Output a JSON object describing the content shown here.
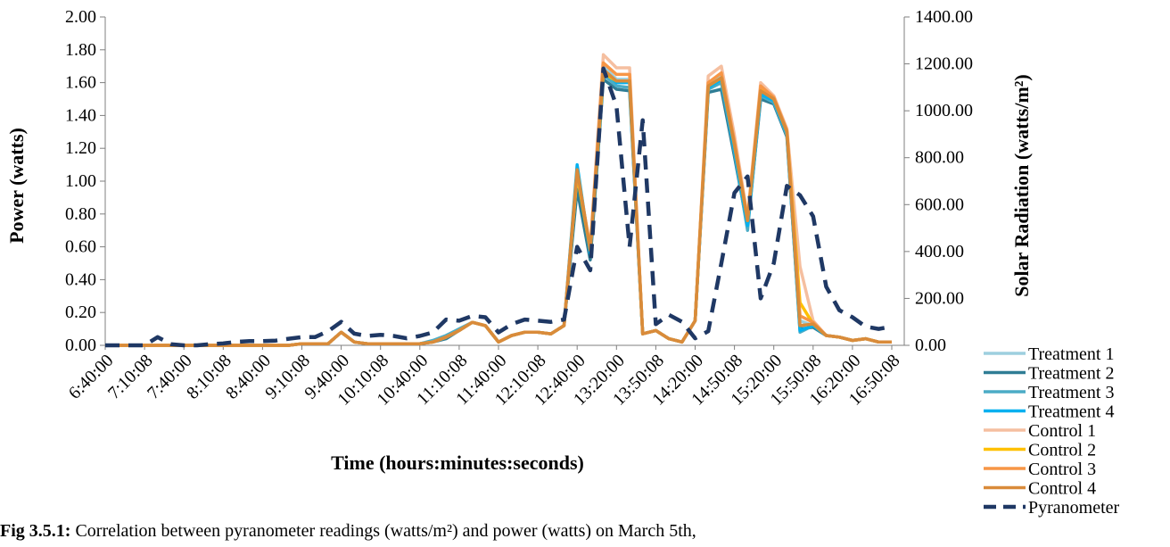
{
  "caption": {
    "label": "Fig 3.5.1:",
    "text": "Correlation between pyranometer readings (watts/m²) and power (watts) on March 5th,"
  },
  "chart_data": {
    "type": "line",
    "xlabel": "Time (hours:minutes:seconds)",
    "ylabel": "Power (watts)",
    "y2label": "Solar Radiation (watts/m²)",
    "ylim": [
      0,
      2
    ],
    "y2lim": [
      0,
      1400
    ],
    "yticks": [
      "0.00",
      "0.20",
      "0.40",
      "0.60",
      "0.80",
      "1.00",
      "1.20",
      "1.40",
      "1.60",
      "1.80",
      "2.00"
    ],
    "y2ticks": [
      "0.00",
      "200.00",
      "400.00",
      "600.00",
      "800.00",
      "1000.00",
      "1200.00",
      "1400.00"
    ],
    "xtick_labels": [
      "6:40:00",
      "7:10:08",
      "7:40:00",
      "8:10:08",
      "8:40:00",
      "9:10:08",
      "9:40:00",
      "10:10:08",
      "10:40:00",
      "11:10:08",
      "11:40:00",
      "12:10:08",
      "12:40:00",
      "13:20:00",
      "13:50:08",
      "14:20:00",
      "14:50:08",
      "15:20:00",
      "15:50:08",
      "16:20:00",
      "16:50:08"
    ],
    "n_points": 61,
    "legend_position": "right",
    "series": [
      {
        "name": "Treatment 1",
        "color": "#9dcfdf",
        "axis": "left",
        "dash": false,
        "values": [
          0,
          0,
          0,
          0,
          0,
          0,
          0,
          0,
          0,
          0,
          0,
          0,
          0,
          0,
          0,
          0.01,
          0.01,
          0.01,
          0.08,
          0.02,
          0.01,
          0.01,
          0.01,
          0.01,
          0.01,
          0.02,
          0.05,
          0.09,
          0.14,
          0.12,
          0.02,
          0.06,
          0.08,
          0.08,
          0.07,
          0.12,
          0.98,
          0.55,
          1.7,
          1.62,
          1.62,
          0.07,
          0.09,
          0.04,
          0.02,
          0.15,
          1.58,
          1.64,
          1.2,
          0.75,
          1.55,
          1.5,
          1.3,
          0.15,
          0.12,
          0.06,
          0.05,
          0.03,
          0.04,
          0.02,
          0.02
        ]
      },
      {
        "name": "Treatment 2",
        "color": "#2f7d95",
        "axis": "left",
        "dash": false,
        "values": [
          0,
          0,
          0,
          0,
          0,
          0,
          0,
          0,
          0,
          0,
          0,
          0,
          0,
          0,
          0,
          0.01,
          0.01,
          0.01,
          0.08,
          0.02,
          0.01,
          0.01,
          0.01,
          0.01,
          0.01,
          0.02,
          0.04,
          0.09,
          0.14,
          0.12,
          0.02,
          0.06,
          0.08,
          0.08,
          0.07,
          0.12,
          0.95,
          0.52,
          1.62,
          1.56,
          1.55,
          0.07,
          0.09,
          0.04,
          0.02,
          0.15,
          1.54,
          1.56,
          1.15,
          0.72,
          1.5,
          1.47,
          1.27,
          0.1,
          0.11,
          0.06,
          0.05,
          0.03,
          0.04,
          0.02,
          0.02
        ]
      },
      {
        "name": "Treatment 3",
        "color": "#4bacc6",
        "axis": "left",
        "dash": false,
        "values": [
          0,
          0,
          0,
          0,
          0,
          0,
          0,
          0,
          0,
          0,
          0,
          0,
          0,
          0,
          0,
          0.01,
          0.01,
          0.01,
          0.08,
          0.02,
          0.01,
          0.01,
          0.01,
          0.01,
          0.01,
          0.03,
          0.06,
          0.1,
          0.14,
          0.12,
          0.02,
          0.06,
          0.08,
          0.08,
          0.07,
          0.12,
          1.05,
          0.58,
          1.65,
          1.58,
          1.57,
          0.07,
          0.09,
          0.04,
          0.02,
          0.15,
          1.56,
          1.6,
          1.18,
          0.7,
          1.52,
          1.48,
          1.28,
          0.08,
          0.12,
          0.06,
          0.05,
          0.03,
          0.04,
          0.02,
          0.02
        ]
      },
      {
        "name": "Treatment 4",
        "color": "#00b0f0",
        "axis": "left",
        "dash": false,
        "values": [
          0,
          0,
          0,
          0,
          0,
          0,
          0,
          0,
          0,
          0,
          0,
          0,
          0,
          0,
          0,
          0.01,
          0.01,
          0.01,
          0.08,
          0.02,
          0.01,
          0.01,
          0.01,
          0.01,
          0.01,
          0.02,
          0.05,
          0.09,
          0.14,
          0.12,
          0.02,
          0.06,
          0.08,
          0.08,
          0.07,
          0.12,
          1.1,
          0.56,
          1.68,
          1.6,
          1.6,
          0.07,
          0.09,
          0.04,
          0.02,
          0.15,
          1.57,
          1.62,
          1.19,
          0.73,
          1.53,
          1.49,
          1.29,
          0.09,
          0.12,
          0.06,
          0.05,
          0.03,
          0.04,
          0.02,
          0.02
        ]
      },
      {
        "name": "Control 1",
        "color": "#f5bfa0",
        "axis": "left",
        "dash": false,
        "values": [
          0,
          0,
          0,
          0,
          0,
          0,
          0,
          0,
          0,
          0,
          0,
          0,
          0,
          0,
          0,
          0.01,
          0.01,
          0.01,
          0.08,
          0.02,
          0.01,
          0.01,
          0.01,
          0.01,
          0.01,
          0.02,
          0.05,
          0.09,
          0.14,
          0.12,
          0.02,
          0.06,
          0.08,
          0.08,
          0.07,
          0.12,
          1.05,
          0.6,
          1.77,
          1.69,
          1.69,
          0.07,
          0.09,
          0.04,
          0.02,
          0.15,
          1.64,
          1.7,
          1.28,
          0.78,
          1.6,
          1.52,
          1.32,
          0.48,
          0.15,
          0.06,
          0.05,
          0.03,
          0.04,
          0.02,
          0.02
        ]
      },
      {
        "name": "Control 2",
        "color": "#ffc000",
        "axis": "left",
        "dash": false,
        "values": [
          0,
          0,
          0,
          0,
          0,
          0,
          0,
          0,
          0,
          0,
          0,
          0,
          0,
          0,
          0,
          0.01,
          0.01,
          0.01,
          0.08,
          0.02,
          0.01,
          0.01,
          0.01,
          0.01,
          0.01,
          0.02,
          0.05,
          0.09,
          0.14,
          0.12,
          0.02,
          0.06,
          0.08,
          0.08,
          0.07,
          0.12,
          1.04,
          0.58,
          1.66,
          1.61,
          1.61,
          0.07,
          0.09,
          0.04,
          0.02,
          0.15,
          1.58,
          1.63,
          1.22,
          0.76,
          1.56,
          1.5,
          1.3,
          0.26,
          0.13,
          0.06,
          0.05,
          0.03,
          0.04,
          0.02,
          0.02
        ]
      },
      {
        "name": "Control 3",
        "color": "#f79646",
        "axis": "left",
        "dash": false,
        "values": [
          0,
          0,
          0,
          0,
          0,
          0,
          0,
          0,
          0,
          0,
          0,
          0,
          0,
          0,
          0,
          0.01,
          0.01,
          0.01,
          0.08,
          0.02,
          0.01,
          0.01,
          0.01,
          0.01,
          0.01,
          0.02,
          0.05,
          0.09,
          0.14,
          0.12,
          0.02,
          0.06,
          0.08,
          0.08,
          0.07,
          0.12,
          1.06,
          0.59,
          1.72,
          1.65,
          1.65,
          0.07,
          0.09,
          0.04,
          0.02,
          0.15,
          1.6,
          1.66,
          1.24,
          0.77,
          1.58,
          1.51,
          1.31,
          0.18,
          0.14,
          0.06,
          0.05,
          0.03,
          0.04,
          0.02,
          0.02
        ]
      },
      {
        "name": "Control 4",
        "color": "#d98b3a",
        "axis": "left",
        "dash": false,
        "values": [
          0,
          0,
          0,
          0,
          0,
          0,
          0,
          0,
          0,
          0,
          0,
          0,
          0,
          0,
          0,
          0.01,
          0.01,
          0.01,
          0.08,
          0.02,
          0.01,
          0.01,
          0.01,
          0.01,
          0.01,
          0.02,
          0.05,
          0.09,
          0.14,
          0.12,
          0.02,
          0.06,
          0.08,
          0.08,
          0.07,
          0.12,
          1.07,
          0.58,
          1.68,
          1.61,
          1.61,
          0.07,
          0.09,
          0.04,
          0.02,
          0.15,
          1.58,
          1.63,
          1.22,
          0.76,
          1.55,
          1.5,
          1.3,
          0.12,
          0.13,
          0.06,
          0.05,
          0.03,
          0.04,
          0.02,
          0.02
        ]
      },
      {
        "name": "Pyranometer",
        "color": "#1f3864",
        "axis": "right",
        "dash": true,
        "values": [
          0,
          0,
          0,
          0,
          35,
          5,
          0,
          0,
          5,
          8,
          15,
          18,
          18,
          20,
          28,
          35,
          35,
          60,
          100,
          50,
          40,
          45,
          40,
          30,
          40,
          55,
          110,
          105,
          125,
          120,
          55,
          90,
          110,
          105,
          100,
          110,
          420,
          320,
          1180,
          1020,
          420,
          960,
          90,
          130,
          100,
          30,
          60,
          350,
          650,
          720,
          200,
          350,
          680,
          640,
          550,
          250,
          150,
          120,
          80,
          70,
          80
        ]
      }
    ]
  }
}
